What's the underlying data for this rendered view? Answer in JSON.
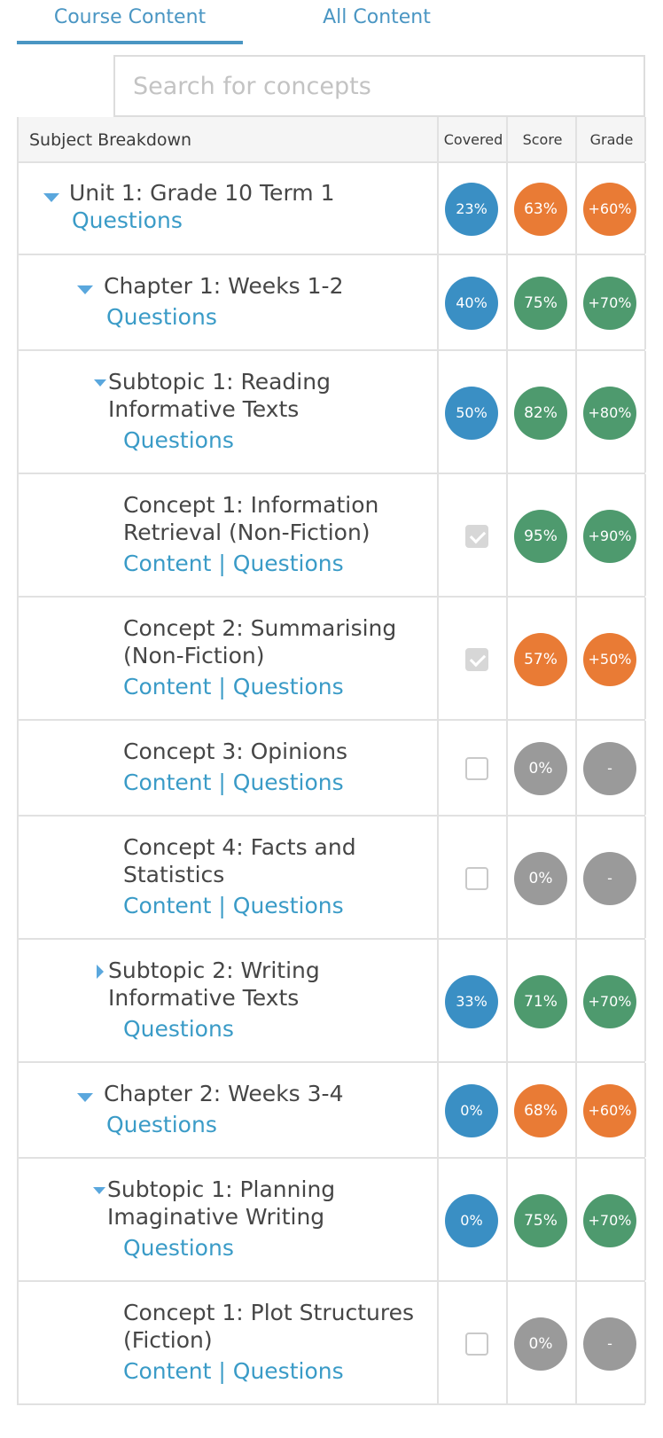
{
  "tabs": [
    "Course Content",
    "All Content"
  ],
  "search": {
    "placeholder": "Search for concepts"
  },
  "table": {
    "headers": {
      "subject": "Subject Breakdown",
      "covered": "Covered",
      "score": "Score",
      "grade": "Grade"
    },
    "link_labels": {
      "content": "Content",
      "separator": "|",
      "questions": "Questions"
    },
    "rows": [
      {
        "title": [
          "Unit 1: Grade 10 Term 1"
        ],
        "covered": "23%",
        "covered_color": "#3a8fc4",
        "score": "63%",
        "score_color": "#e97b35",
        "grade": "+60%",
        "grade_color": "#e97b35"
      },
      {
        "title": [
          "Chapter 1: Weeks 1-2"
        ],
        "covered": "40%",
        "covered_color": "#3a8fc4",
        "score": "75%",
        "score_color": "#4e9a6e",
        "grade": "+70%",
        "grade_color": "#4e9a6e"
      },
      {
        "title": [
          "Subtopic 1: Reading",
          "Informative Texts"
        ],
        "covered": "50%",
        "covered_color": "#3a8fc4",
        "score": "82%",
        "score_color": "#4e9a6e",
        "grade": "+80%",
        "grade_color": "#4e9a6e"
      },
      {
        "title": [
          "Concept 1: Information",
          "Retrieval (Non-Fiction)"
        ],
        "covered_checked": true,
        "score": "95%",
        "score_color": "#4e9a6e",
        "grade": "+90%",
        "grade_color": "#4e9a6e"
      },
      {
        "title": [
          "Concept 2: Summarising",
          "(Non-Fiction)"
        ],
        "covered_checked": true,
        "score": "57%",
        "score_color": "#e97b35",
        "grade": "+50%",
        "grade_color": "#e97b35"
      },
      {
        "title": [
          "Concept 3: Opinions"
        ],
        "covered_checked": false,
        "score": "0%",
        "score_color": "#9a9a9a",
        "grade": "-",
        "grade_color": "#9a9a9a"
      },
      {
        "title": [
          "Concept 4: Facts and",
          "Statistics"
        ],
        "covered_checked": false,
        "score": "0%",
        "score_color": "#9a9a9a",
        "grade": "-",
        "grade_color": "#9a9a9a"
      },
      {
        "title": [
          "Subtopic 2: Writing",
          "Informative Texts"
        ],
        "covered": "33%",
        "covered_color": "#3a8fc4",
        "score": "71%",
        "score_color": "#4e9a6e",
        "grade": "+70%",
        "grade_color": "#4e9a6e"
      },
      {
        "title": [
          "Chapter 2: Weeks 3-4"
        ],
        "covered": "0%",
        "covered_color": "#3a8fc4",
        "score": "68%",
        "score_color": "#e97b35",
        "grade": "+60%",
        "grade_color": "#e97b35"
      },
      {
        "title": [
          "Subtopic 1: Planning",
          "Imaginative Writing"
        ],
        "covered": "0%",
        "covered_color": "#3a8fc4",
        "score": "75%",
        "score_color": "#4e9a6e",
        "grade": "+70%",
        "grade_color": "#4e9a6e"
      },
      {
        "title": [
          "Concept 1: Plot Structures",
          "(Fiction)"
        ],
        "covered_checked": false,
        "score": "0%",
        "score_color": "#9a9a9a",
        "grade": "-",
        "grade_color": "#9a9a9a"
      }
    ]
  }
}
